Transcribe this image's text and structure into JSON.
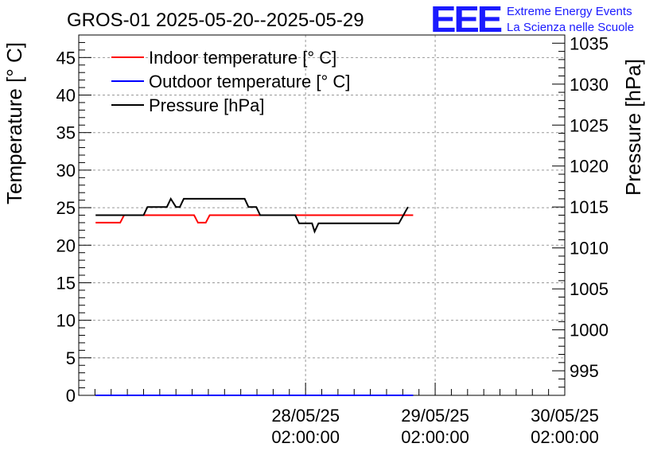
{
  "chart_data": {
    "type": "line",
    "title": "GROS-01 2025-05-20--2025-05-29",
    "logo": {
      "letters": "EEE",
      "line1": "Extreme Energy Events",
      "line2": "La Scienza nelle Scuole",
      "color": "#1a1aff"
    },
    "x_axis": {
      "ticks": [
        {
          "day": 1,
          "line1": "28/05/25",
          "line2": "02:00:00"
        },
        {
          "day": 2,
          "line1": "29/05/25",
          "line2": "02:00:00"
        },
        {
          "day": 3,
          "line1": "30/05/25",
          "line2": "02:00:00"
        }
      ],
      "range_days": [
        -0.75,
        3.0
      ]
    },
    "y_left": {
      "label": "Temperature [° C]",
      "range": [
        0,
        48
      ],
      "ticks": [
        "0",
        "5",
        "10",
        "15",
        "20",
        "25",
        "30",
        "35",
        "40",
        "45"
      ],
      "tick_values": [
        0,
        5,
        10,
        15,
        20,
        25,
        30,
        35,
        40,
        45
      ]
    },
    "y_right": {
      "label": "Pressure [hPa]",
      "range": [
        992,
        1036
      ],
      "ticks": [
        "995",
        "1000",
        "1005",
        "1010",
        "1015",
        "1020",
        "1025",
        "1030",
        "1035"
      ],
      "tick_values": [
        995,
        1000,
        1005,
        1010,
        1015,
        1020,
        1025,
        1030,
        1035
      ]
    },
    "grid": true,
    "legend_position": "top-left",
    "series": [
      {
        "name": "Indoor temperature [° C]",
        "color": "#ff0000",
        "axis": "left",
        "points": [
          [
            -0.62,
            23
          ],
          [
            -0.43,
            23
          ],
          [
            -0.4,
            24
          ],
          [
            0.14,
            24
          ],
          [
            0.17,
            23
          ],
          [
            0.23,
            23
          ],
          [
            0.26,
            24
          ],
          [
            1.83,
            24
          ]
        ]
      },
      {
        "name": "Outdoor temperature [° C]",
        "color": "#0000ff",
        "axis": "left",
        "points": [
          [
            -0.62,
            0
          ],
          [
            1.83,
            0
          ]
        ]
      },
      {
        "name": "Pressure [hPa]",
        "color": "#000000",
        "axis": "right",
        "points": [
          [
            -0.62,
            1014
          ],
          [
            -0.25,
            1014
          ],
          [
            -0.22,
            1015
          ],
          [
            -0.07,
            1015
          ],
          [
            -0.04,
            1016
          ],
          [
            0.0,
            1015
          ],
          [
            0.03,
            1015
          ],
          [
            0.06,
            1016
          ],
          [
            0.53,
            1016
          ],
          [
            0.56,
            1015
          ],
          [
            0.62,
            1015
          ],
          [
            0.65,
            1014
          ],
          [
            0.92,
            1014
          ],
          [
            0.95,
            1013
          ],
          [
            1.05,
            1013
          ],
          [
            1.07,
            1012
          ],
          [
            1.1,
            1013
          ],
          [
            1.72,
            1013
          ],
          [
            1.79,
            1015
          ]
        ]
      }
    ]
  }
}
